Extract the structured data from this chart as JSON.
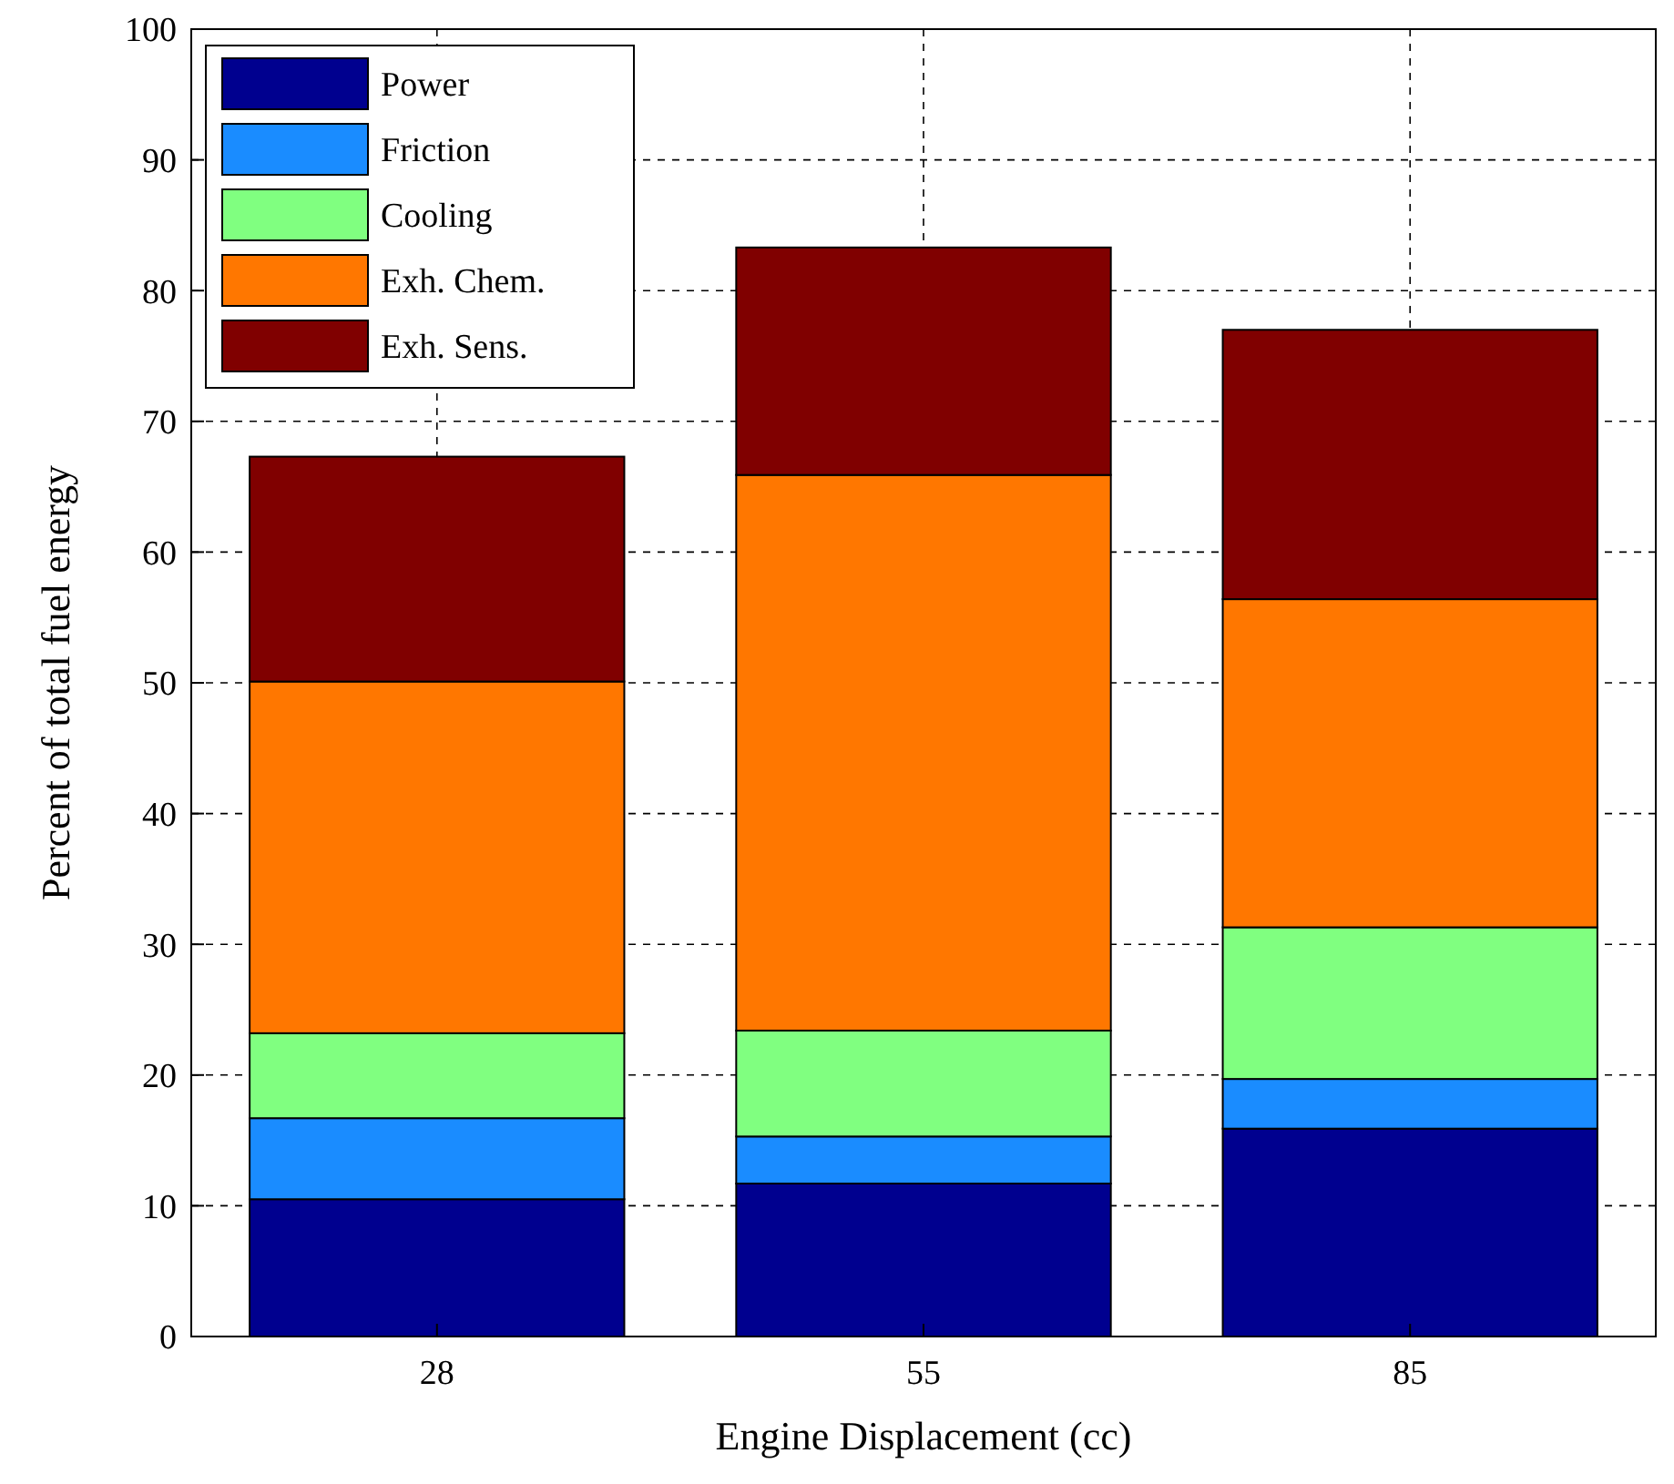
{
  "chart_data": {
    "type": "bar",
    "stacked": true,
    "xlabel": "Engine Displacement (cc)",
    "ylabel": "Percent of total fuel energy",
    "categories": [
      "28",
      "55",
      "85"
    ],
    "series": [
      {
        "name": "Power",
        "color": "#00008f",
        "values": [
          10.5,
          11.7,
          15.9
        ]
      },
      {
        "name": "Friction",
        "color": "#1a8cff",
        "values": [
          6.2,
          3.6,
          3.8
        ]
      },
      {
        "name": "Cooling",
        "color": "#80ff80",
        "values": [
          6.5,
          8.1,
          11.6
        ]
      },
      {
        "name": "Exh. Chem.",
        "color": "#ff7700",
        "values": [
          26.9,
          42.5,
          25.1
        ]
      },
      {
        "name": "Exh. Sens.",
        "color": "#800000",
        "values": [
          17.2,
          17.4,
          20.6
        ]
      }
    ],
    "ylim": [
      0,
      100
    ],
    "yticks": [
      0,
      10,
      20,
      30,
      40,
      50,
      60,
      70,
      80,
      90,
      100
    ],
    "grid": true,
    "legend": "top left"
  }
}
